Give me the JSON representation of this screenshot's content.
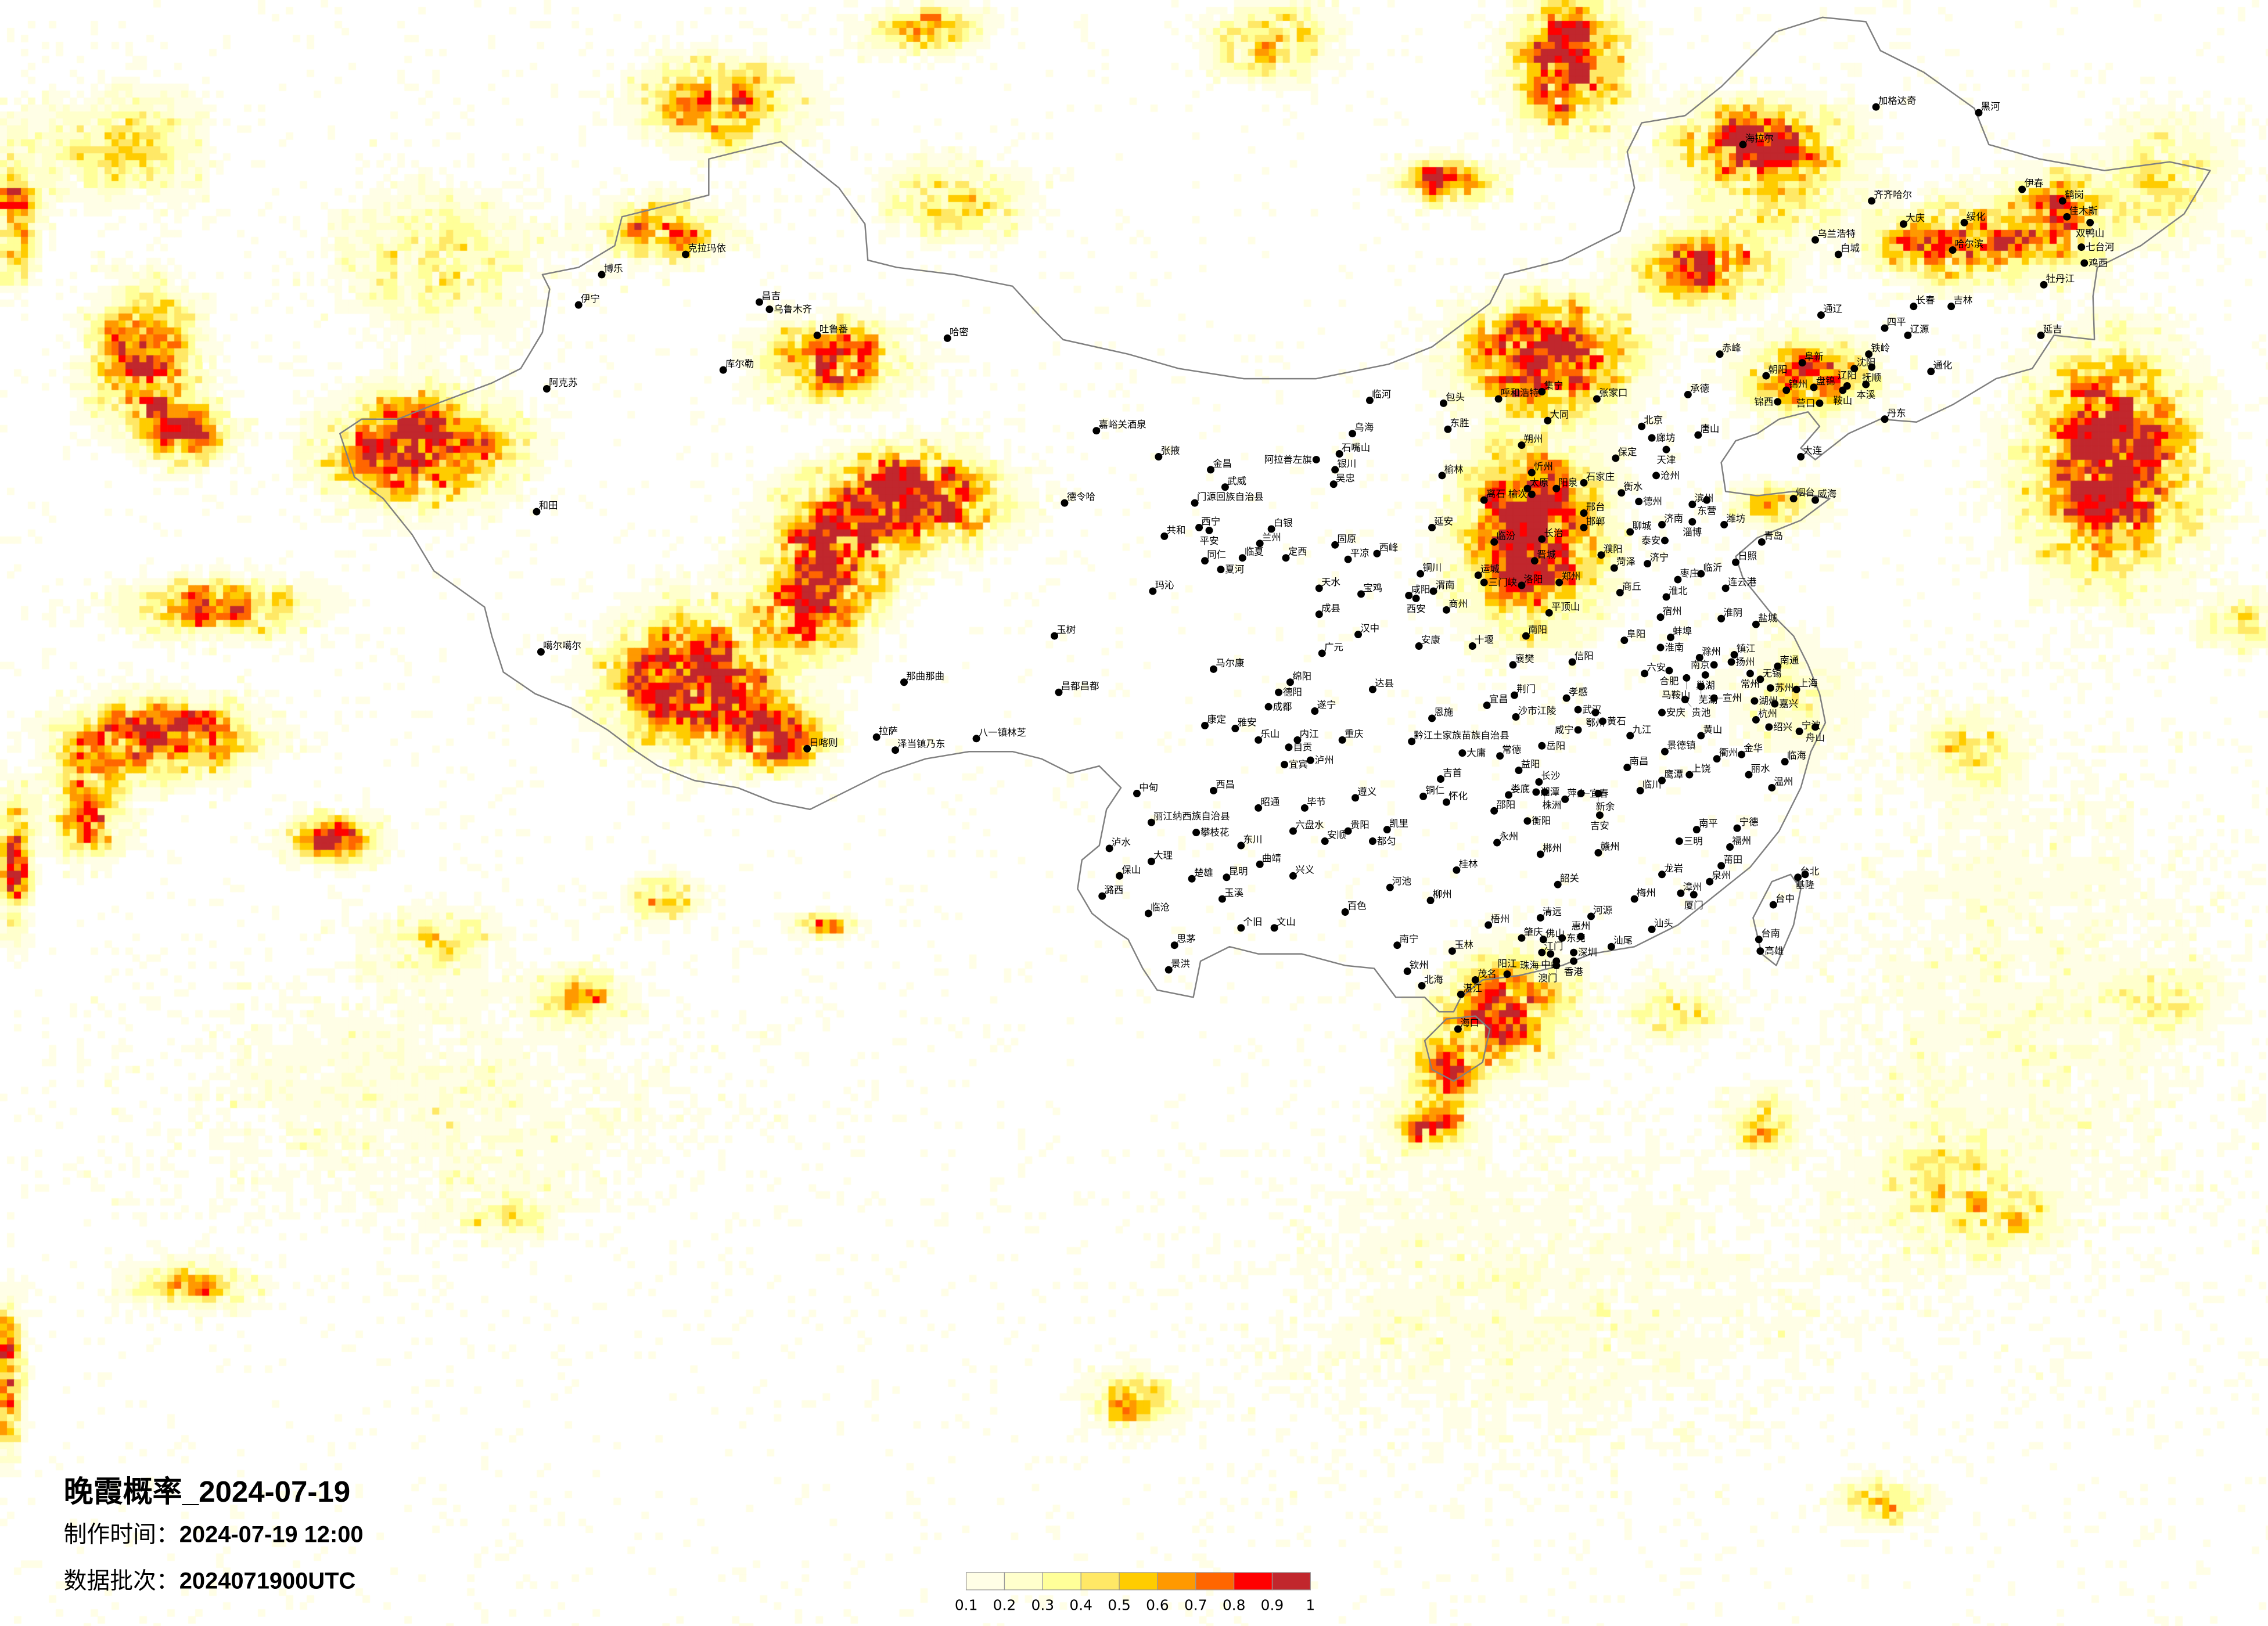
{
  "title": {
    "text": "晚霞概率_2024-07-19"
  },
  "meta": {
    "made_label": "制作时间：",
    "made_value": "2024-07-19 12:00",
    "batch_label": "数据批次：",
    "batch_value": "2024071900UTC"
  },
  "legend": {
    "labels": [
      "0.1",
      "0.2",
      "0.3",
      "0.4",
      "0.5",
      "0.6",
      "0.7",
      "0.8",
      "0.9",
      "1"
    ],
    "colors": [
      "#fffee6",
      "#ffffcc",
      "#ffff99",
      "#ffe866",
      "#ffcc00",
      "#ff9900",
      "#ff6600",
      "#ff0000",
      "#c1272d"
    ]
  },
  "map": {
    "variable": "晚霞概率",
    "border_color": "#808080",
    "city_dot_color": "#000000",
    "cities": [
      "克拉玛依",
      "博乐",
      "伊宁",
      "昌吉",
      "乌鲁木齐",
      "吐鲁番",
      "哈密",
      "库尔勒",
      "阿克苏",
      "和田",
      "嘉峪关酒泉",
      "张掖",
      "金昌",
      "武威",
      "德令哈",
      "门源回族自治县",
      "西宁",
      "平安",
      "共和",
      "白银",
      "兰州",
      "临夏",
      "同仁",
      "夏河",
      "定西",
      "玛沁",
      "玉树",
      "临河",
      "乌海",
      "石嘴山",
      "阿拉善左旗",
      "银川",
      "吴忠",
      "包头",
      "呼和浩特",
      "集宁",
      "东胜",
      "大同",
      "朔州",
      "忻州",
      "太原",
      "榆次",
      "阳泉",
      "榆林",
      "离石",
      "延安",
      "固原",
      "平凉",
      "西峰",
      "铜川",
      "临汾",
      "长治",
      "晋城",
      "运城",
      "三门峡",
      "洛阳",
      "郑州",
      "天水",
      "宝鸡",
      "咸阳",
      "西安",
      "渭南",
      "商州",
      "成县",
      "汉中",
      "安康",
      "十堰",
      "平顶山",
      "南阳",
      "广元",
      "马尔康",
      "绵阳",
      "德阳",
      "成都",
      "遂宁",
      "达县",
      "昌都昌都",
      "襄樊",
      "信阳",
      "赤峰",
      "阜新",
      "朝阳",
      "沈阳",
      "抚顺",
      "铁岭",
      "四平",
      "辽源",
      "通化",
      "锦州",
      "盘锦",
      "辽阳",
      "本溪",
      "鞍山",
      "营口",
      "锦西",
      "丹东",
      "大连",
      "张家口",
      "承德",
      "北京",
      "廊坊",
      "唐山",
      "天津",
      "保定",
      "沧州",
      "石家庄",
      "衡水",
      "德州",
      "滨州",
      "东营",
      "邢台",
      "邯郸",
      "聊城",
      "济南",
      "淄博",
      "潍坊",
      "泰安",
      "烟台",
      "威海",
      "青岛",
      "日照",
      "临沂",
      "济宁",
      "枣庄",
      "菏泽",
      "濮阳",
      "商丘",
      "连云港",
      "淮北",
      "宿州",
      "淮阴",
      "盐城",
      "阜阳",
      "蚌埠",
      "淮南",
      "滁州",
      "镇江",
      "扬州",
      "南京",
      "常州",
      "南通",
      "六安",
      "合肥",
      "巢湖",
      "无锡",
      "马鞍山",
      "芜湖",
      "苏州",
      "上海",
      "宣州",
      "湖州",
      "嘉兴",
      "安庆",
      "贵池",
      "杭州",
      "宜昌",
      "荆门",
      "沙市江陵",
      "孝感",
      "武汉",
      "鄂州",
      "黄石",
      "咸宁",
      "恩施",
      "黔江土家族苗族自治县",
      "岳阳",
      "大庸",
      "常德",
      "益阳",
      "吉首",
      "长沙",
      "湘潭",
      "株洲",
      "萍乡",
      "宜春",
      "新余",
      "铜仁",
      "怀化",
      "娄底",
      "邵阳",
      "吉安",
      "衡阳",
      "永州",
      "郴州",
      "赣州",
      "桂林",
      "韶关",
      "柳州",
      "梧州",
      "清远",
      "河源",
      "南宁",
      "玉林",
      "肇庆",
      "佛山",
      "东莞",
      "惠州",
      "江门",
      "中山",
      "深圳",
      "香港",
      "澳门",
      "珠海",
      "汕尾",
      "汕头",
      "梅州",
      "钦州",
      "北海",
      "茂名",
      "阳江",
      "湛江",
      "海口",
      "南昌",
      "九江",
      "景德镇",
      "黄山",
      "临川",
      "鹰潭",
      "上饶",
      "衢州",
      "金华",
      "丽水",
      "温州",
      "临海",
      "宁波",
      "舟山",
      "绍兴",
      "南平",
      "三明",
      "宁德",
      "福州",
      "莆田",
      "泉州",
      "龙岩",
      "漳州",
      "厦门",
      "台北",
      "基隆",
      "台中",
      "台南",
      "高雄",
      "加格达奇",
      "黑河",
      "海拉尔",
      "齐齐哈尔",
      "伊春",
      "鹤岗",
      "佳木斯",
      "双鸭山",
      "大庆",
      "绥化",
      "乌兰浩特",
      "白城",
      "哈尔滨",
      "七台河",
      "鸡西",
      "牡丹江",
      "长春",
      "吉林",
      "通辽",
      "延吉",
      "噶尔噶尔",
      "那曲那曲",
      "日喀则",
      "拉萨",
      "泽当镇乃东",
      "八一镇林芝",
      "康定",
      "雅安",
      "乐山",
      "内江",
      "自贡",
      "重庆",
      "宜宾",
      "泸州",
      "西昌",
      "中甸",
      "昭通",
      "毕节",
      "遵义",
      "丽江纳西族自治县",
      "攀枝花",
      "六盘水",
      "贵阳",
      "安顺",
      "凯里",
      "都匀",
      "泸水",
      "东川",
      "大理",
      "曲靖",
      "保山",
      "楚雄",
      "昆明",
      "兴义",
      "河池",
      "潞西",
      "玉溪",
      "临沧",
      "百色",
      "个旧",
      "文山",
      "思茅",
      "景洪"
    ]
  }
}
